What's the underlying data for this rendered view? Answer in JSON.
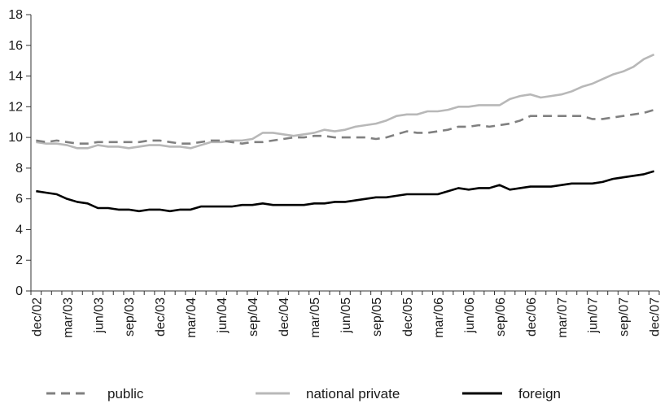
{
  "chart_data": {
    "type": "line",
    "title": "",
    "xlabel": "",
    "ylabel": "",
    "ylim": [
      0,
      18
    ],
    "yticks": [
      0,
      2,
      4,
      6,
      8,
      10,
      12,
      14,
      16,
      18
    ],
    "grid": false,
    "legend_position": "bottom",
    "x": [
      "dec/02",
      "jan/03",
      "feb/03",
      "mar/03",
      "apr/03",
      "may/03",
      "jun/03",
      "jul/03",
      "aug/03",
      "sep/03",
      "oct/03",
      "nov/03",
      "dec/03",
      "jan/04",
      "feb/04",
      "mar/04",
      "apr/04",
      "may/04",
      "jun/04",
      "jul/04",
      "aug/04",
      "sep/04",
      "oct/04",
      "nov/04",
      "dec/04",
      "jan/05",
      "feb/05",
      "mar/05",
      "apr/05",
      "may/05",
      "jun/05",
      "jul/05",
      "aug/05",
      "sep/05",
      "oct/05",
      "nov/05",
      "dec/05",
      "jan/06",
      "feb/06",
      "mar/06",
      "apr/06",
      "may/06",
      "jun/06",
      "jul/06",
      "aug/06",
      "sep/06",
      "oct/06",
      "nov/06",
      "dec/06",
      "jan/07",
      "feb/07",
      "mar/07",
      "apr/07",
      "may/07",
      "jun/07",
      "jul/07",
      "aug/07",
      "sep/07",
      "oct/07",
      "nov/07",
      "dec/07"
    ],
    "tick_labels": [
      "dec/02",
      "mar/03",
      "jun/03",
      "sep/03",
      "dec/03",
      "mar/04",
      "jun/04",
      "sep/04",
      "dec/04",
      "mar/05",
      "jun/05",
      "sep/05",
      "dec/05",
      "mar/06",
      "jun/06",
      "sep/06",
      "dec/06",
      "mar/07",
      "jun/07",
      "sep/07",
      "dec/07"
    ],
    "series": [
      {
        "name": "public",
        "color": "#808080",
        "style": "dashed",
        "values": [
          9.8,
          9.7,
          9.8,
          9.7,
          9.6,
          9.6,
          9.7,
          9.7,
          9.7,
          9.7,
          9.7,
          9.8,
          9.8,
          9.7,
          9.6,
          9.6,
          9.7,
          9.8,
          9.8,
          9.7,
          9.6,
          9.7,
          9.7,
          9.8,
          9.9,
          10.0,
          10.0,
          10.1,
          10.1,
          10.0,
          10.0,
          10.0,
          10.0,
          9.9,
          10.0,
          10.2,
          10.4,
          10.3,
          10.3,
          10.4,
          10.5,
          10.7,
          10.7,
          10.8,
          10.7,
          10.8,
          10.9,
          11.1,
          11.4,
          11.4,
          11.4,
          11.4,
          11.4,
          11.4,
          11.2,
          11.2,
          11.3,
          11.4,
          11.5,
          11.6,
          11.8
        ]
      },
      {
        "name": "national private",
        "color": "#b8b8b8",
        "style": "solid",
        "values": [
          9.7,
          9.6,
          9.6,
          9.5,
          9.3,
          9.3,
          9.5,
          9.4,
          9.4,
          9.3,
          9.4,
          9.5,
          9.5,
          9.4,
          9.4,
          9.3,
          9.5,
          9.7,
          9.7,
          9.8,
          9.8,
          9.9,
          10.3,
          10.3,
          10.2,
          10.1,
          10.2,
          10.3,
          10.5,
          10.4,
          10.5,
          10.7,
          10.8,
          10.9,
          11.1,
          11.4,
          11.5,
          11.5,
          11.7,
          11.7,
          11.8,
          12.0,
          12.0,
          12.1,
          12.1,
          12.1,
          12.5,
          12.7,
          12.8,
          12.6,
          12.7,
          12.8,
          13.0,
          13.3,
          13.5,
          13.8,
          14.1,
          14.3,
          14.6,
          15.1,
          15.4
        ]
      },
      {
        "name": "foreign",
        "color": "#000000",
        "style": "solid",
        "values": [
          6.5,
          6.4,
          6.3,
          6.0,
          5.8,
          5.7,
          5.4,
          5.4,
          5.3,
          5.3,
          5.2,
          5.3,
          5.3,
          5.2,
          5.3,
          5.3,
          5.5,
          5.5,
          5.5,
          5.5,
          5.6,
          5.6,
          5.7,
          5.6,
          5.6,
          5.6,
          5.6,
          5.7,
          5.7,
          5.8,
          5.8,
          5.9,
          6.0,
          6.1,
          6.1,
          6.2,
          6.3,
          6.3,
          6.3,
          6.3,
          6.5,
          6.7,
          6.6,
          6.7,
          6.7,
          6.9,
          6.6,
          6.7,
          6.8,
          6.8,
          6.8,
          6.9,
          7.0,
          7.0,
          7.0,
          7.1,
          7.3,
          7.4,
          7.5,
          7.6,
          7.8
        ]
      }
    ]
  }
}
